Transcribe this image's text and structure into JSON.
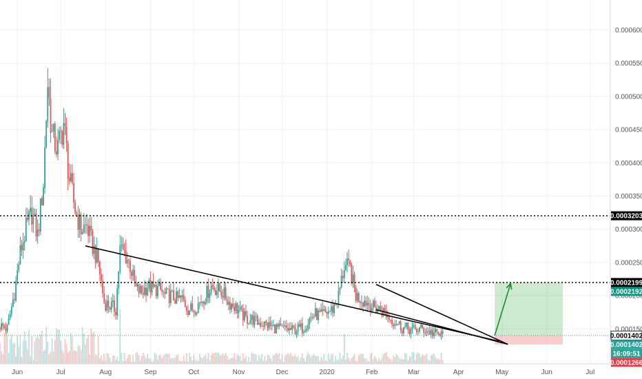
{
  "chart_data": {
    "type": "candlestick",
    "ylim": [
      9.75e-05,
      0.000645
    ],
    "x_ticks": [
      "Jun",
      "Jul",
      "Aug",
      "Sep",
      "Oct",
      "Nov",
      "Dec",
      "2020",
      "Feb",
      "Mar",
      "Apr",
      "May",
      "Jun",
      "Jul"
    ],
    "y_ticks": [
      "0.0001500",
      "0.0002000",
      "0.0002500",
      "0.0003000",
      "0.0003500",
      "0.0004000",
      "0.0004500",
      "0.0005000",
      "0.0005500",
      "0.0006000"
    ],
    "tags": [
      {
        "label": "0.0003203",
        "value": 0.0003203,
        "bg": "#000000",
        "fg": "#ffffff"
      },
      {
        "label": "0.0002199",
        "value": 0.0002199,
        "bg": "#000000",
        "fg": "#ffffff"
      },
      {
        "label": "0.0002192",
        "value": 0.0002192,
        "bg": "#089981",
        "fg": "#ffffff"
      },
      {
        "label": "0.0001402",
        "value": 0.0001402,
        "bg": "#ffffff",
        "fg": "#000000"
      },
      {
        "label": "0.0001402",
        "value": 0.0001402,
        "bg": "#26a69a",
        "fg": "#ffffff"
      },
      {
        "label": "16:09:51",
        "value": 0.0001402,
        "bg": "#26a69a",
        "fg": "#ffffff"
      },
      {
        "label": "0.0001266",
        "value": 0.0001266,
        "bg": "#f23645",
        "fg": "#ffffff"
      }
    ],
    "horizontal_lines": [
      0.0003203,
      0.0002199
    ],
    "trendlines": [
      {
        "from": [
          "2019-07-18",
          0.000275
        ],
        "to": [
          "2020-04-29",
          0.0001315
        ]
      },
      {
        "from": [
          "2020-02-04",
          0.000217
        ],
        "to": [
          "2020-05-05",
          0.000127
        ]
      },
      {
        "from": [
          "2020-02-04",
          0.000179
        ],
        "to": [
          "2020-05-05",
          0.000127
        ]
      }
    ],
    "target_arrow": {
      "from": [
        "2020-04-26",
        0.0001402
      ],
      "to": [
        "2020-05-07",
        0.0002185
      ]
    },
    "long_position": {
      "entry": 0.0001402,
      "target": 0.0002199,
      "stop": 0.0001266,
      "start": "2020-04-26",
      "end": "2020-06-12"
    },
    "colors": {
      "up": "#26a69a",
      "down": "#ef5350",
      "grid": "#eef0f3"
    },
    "price_path": [
      [
        0,
        0.000155
      ],
      [
        5,
        0.00015
      ],
      [
        10,
        0.000205
      ],
      [
        14,
        0.000265
      ],
      [
        18,
        0.0003
      ],
      [
        22,
        0.000325
      ],
      [
        26,
        0.00029
      ],
      [
        30,
        0.00037
      ],
      [
        33,
        0.00052
      ],
      [
        36,
        0.00044
      ],
      [
        40,
        0.00042
      ],
      [
        44,
        0.00046
      ],
      [
        48,
        0.000375
      ],
      [
        52,
        0.00033
      ],
      [
        56,
        0.0003
      ],
      [
        60,
        0.000305
      ],
      [
        64,
        0.000275
      ],
      [
        68,
        0.00025
      ],
      [
        72,
        0.00019
      ],
      [
        76,
        0.000185
      ],
      [
        80,
        0.00018
      ],
      [
        83,
        0.00027
      ],
      [
        86,
        0.000265
      ],
      [
        90,
        0.000245
      ],
      [
        94,
        0.00021
      ],
      [
        98,
        0.000205
      ],
      [
        102,
        0.000215
      ],
      [
        106,
        0.00021
      ],
      [
        110,
        0.00021
      ],
      [
        114,
        0.0002
      ],
      [
        118,
        0.0002
      ],
      [
        122,
        0.000195
      ],
      [
        126,
        0.000195
      ],
      [
        130,
        0.00018
      ],
      [
        134,
        0.00018
      ],
      [
        138,
        0.00019
      ],
      [
        142,
        0.0002
      ],
      [
        146,
        0.000215
      ],
      [
        150,
        0.00021
      ],
      [
        154,
        0.000205
      ],
      [
        158,
        0.00019
      ],
      [
        162,
        0.000185
      ],
      [
        166,
        0.000175
      ],
      [
        170,
        0.000165
      ],
      [
        174,
        0.000165
      ],
      [
        178,
        0.00016
      ],
      [
        182,
        0.000158
      ],
      [
        186,
        0.000155
      ],
      [
        190,
        0.000152
      ],
      [
        194,
        0.00015
      ],
      [
        198,
        0.00015
      ],
      [
        202,
        0.000148
      ],
      [
        206,
        0.00015
      ],
      [
        210,
        0.000152
      ],
      [
        214,
        0.000165
      ],
      [
        218,
        0.000172
      ],
      [
        222,
        0.00017
      ],
      [
        226,
        0.000175
      ],
      [
        230,
        0.00018
      ],
      [
        234,
        0.0002
      ],
      [
        238,
        0.000245
      ],
      [
        242,
        0.00024
      ],
      [
        246,
        0.0002
      ],
      [
        250,
        0.000195
      ],
      [
        254,
        0.00019
      ],
      [
        258,
        0.000182
      ],
      [
        262,
        0.00018
      ],
      [
        266,
        0.000175
      ],
      [
        270,
        0.000165
      ],
      [
        274,
        0.00016
      ],
      [
        278,
        0.000152
      ],
      [
        282,
        0.00015
      ],
      [
        286,
        0.000148
      ],
      [
        290,
        0.00015
      ],
      [
        294,
        0.000148
      ],
      [
        298,
        0.000145
      ],
      [
        302,
        0.000142
      ],
      [
        306,
        0.00014
      ]
    ]
  }
}
